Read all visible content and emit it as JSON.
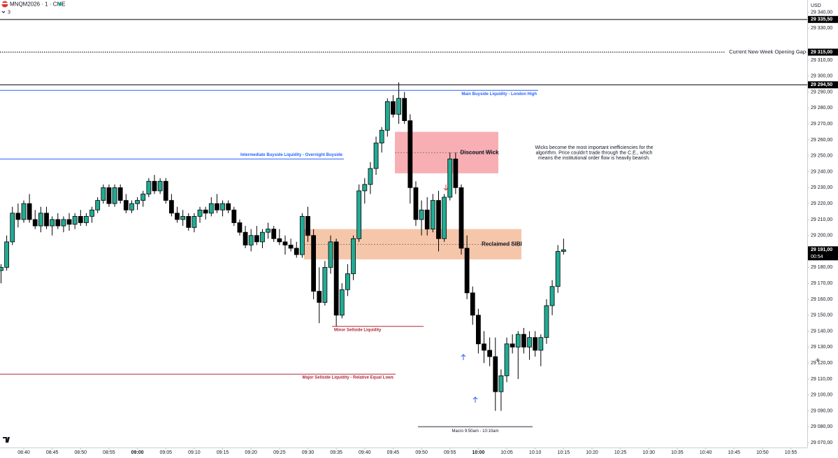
{
  "chart_data": {
    "type": "candlestick",
    "header": {
      "symbol": "MNQM2026 · 1 · CME",
      "count": "3",
      "currency": "USD"
    },
    "x": [
      "08:36",
      "08:37",
      "08:38",
      "08:39",
      "08:40",
      "08:41",
      "08:42",
      "08:43",
      "08:44",
      "08:45",
      "08:46",
      "08:47",
      "08:48",
      "08:49",
      "08:50",
      "08:51",
      "08:52",
      "08:53",
      "08:54",
      "08:55",
      "08:56",
      "08:57",
      "08:58",
      "08:59",
      "09:00",
      "09:01",
      "09:02",
      "09:03",
      "09:04",
      "09:05",
      "09:06",
      "09:07",
      "09:08",
      "09:09",
      "09:10",
      "09:11",
      "09:12",
      "09:13",
      "09:14",
      "09:15",
      "09:16",
      "09:17",
      "09:18",
      "09:19",
      "09:20",
      "09:21",
      "09:22",
      "09:23",
      "09:24",
      "09:25",
      "09:26",
      "09:27",
      "09:28",
      "09:29",
      "09:30",
      "09:31",
      "09:32",
      "09:33",
      "09:34",
      "09:35",
      "09:36",
      "09:37",
      "09:38",
      "09:39",
      "09:40",
      "09:41",
      "09:42",
      "09:43",
      "09:44",
      "09:45",
      "09:46",
      "09:47",
      "09:48",
      "09:49",
      "09:50",
      "09:51",
      "09:52",
      "09:53",
      "09:54",
      "09:55",
      "09:56",
      "09:57",
      "09:58",
      "09:59",
      "10:00",
      "10:01",
      "10:02",
      "10:03",
      "10:04",
      "10:05",
      "10:06",
      "10:07",
      "10:08",
      "10:09",
      "10:10",
      "10:11",
      "10:12",
      "10:13",
      "10:14",
      "10:15"
    ],
    "open": [
      29178,
      29180,
      29196,
      29214,
      29210,
      29220,
      29210,
      29206,
      29214,
      29206,
      29210,
      29206,
      29210,
      29207,
      29212,
      29208,
      29212,
      29216,
      29222,
      29230,
      29220,
      29230,
      29222,
      29216,
      29220,
      29222,
      29226,
      29234,
      29228,
      29234,
      29222,
      29214,
      29210,
      29212,
      29205,
      29212,
      29216,
      29214,
      29220,
      29216,
      29220,
      29216,
      29208,
      29202,
      29194,
      29200,
      29196,
      29202,
      29204,
      29198,
      29196,
      29194,
      29192,
      29188,
      29212,
      29200,
      29165,
      29158,
      29180,
      29196,
      29150,
      29166,
      29176,
      29198,
      29228,
      29232,
      29242,
      29258,
      29266,
      29284,
      29276,
      29286,
      29272,
      29230,
      29210,
      29216,
      29204,
      29222,
      29198,
      29224,
      29248,
      29230,
      29192,
      29164,
      29150,
      29132,
      29128,
      29124,
      29102,
      29112,
      29132,
      29130,
      29138,
      29130,
      29136,
      29128,
      29136,
      29156,
      29168,
      29190
    ],
    "high": [
      29182,
      29200,
      29218,
      29220,
      29222,
      29226,
      29216,
      29218,
      29218,
      29212,
      29214,
      29212,
      29214,
      29214,
      29216,
      29214,
      29218,
      29224,
      29232,
      29232,
      29232,
      29232,
      29226,
      29222,
      29224,
      29228,
      29236,
      29238,
      29236,
      29236,
      29226,
      29218,
      29216,
      29214,
      29214,
      29218,
      29218,
      29224,
      29226,
      29222,
      29222,
      29218,
      29210,
      29206,
      29204,
      29206,
      29204,
      29208,
      29206,
      29204,
      29200,
      29198,
      29196,
      29214,
      29218,
      29204,
      29180,
      29184,
      29200,
      29198,
      29170,
      29182,
      29200,
      29232,
      29236,
      29246,
      29262,
      29268,
      29286,
      29288,
      29296,
      29290,
      29276,
      29234,
      29222,
      29224,
      29226,
      29228,
      29226,
      29252,
      29252,
      29232,
      29200,
      29168,
      29154,
      29140,
      29136,
      29136,
      29116,
      29136,
      29138,
      29140,
      29142,
      29140,
      29140,
      29138,
      29160,
      29172,
      29194,
      29198
    ],
    "low": [
      29170,
      29178,
      29194,
      29205,
      29208,
      29208,
      29204,
      29202,
      29204,
      29200,
      29204,
      29202,
      29203,
      29204,
      29206,
      29206,
      29208,
      29214,
      29220,
      29218,
      29218,
      29220,
      29214,
      29214,
      29216,
      29218,
      29224,
      29226,
      29226,
      29220,
      29212,
      29208,
      29206,
      29203,
      29202,
      29208,
      29210,
      29212,
      29214,
      29212,
      29214,
      29206,
      29200,
      29192,
      29190,
      29194,
      29192,
      29198,
      29196,
      29194,
      29188,
      29190,
      29186,
      29186,
      29196,
      29160,
      29145,
      29156,
      29176,
      29143,
      29148,
      29162,
      29172,
      29196,
      29220,
      29226,
      29238,
      29252,
      29262,
      29274,
      29270,
      29270,
      29220,
      29206,
      29200,
      29200,
      29202,
      29190,
      29196,
      29222,
      29226,
      29188,
      29160,
      29144,
      29126,
      29120,
      29118,
      29090,
      29090,
      29108,
      29126,
      29110,
      29126,
      29122,
      29124,
      29118,
      29132,
      29150,
      29164,
      29188
    ],
    "close": [
      29180,
      29196,
      29214,
      29210,
      29220,
      29210,
      29206,
      29214,
      29206,
      29210,
      29206,
      29210,
      29207,
      29212,
      29208,
      29212,
      29216,
      29222,
      29230,
      29220,
      29230,
      29222,
      29216,
      29220,
      29222,
      29226,
      29234,
      29228,
      29234,
      29222,
      29214,
      29210,
      29212,
      29205,
      29212,
      29216,
      29214,
      29220,
      29216,
      29220,
      29216,
      29208,
      29202,
      29194,
      29200,
      29196,
      29202,
      29204,
      29198,
      29196,
      29194,
      29192,
      29188,
      29212,
      29200,
      29165,
      29158,
      29180,
      29196,
      29150,
      29166,
      29176,
      29198,
      29228,
      29232,
      29242,
      29258,
      29266,
      29284,
      29276,
      29286,
      29272,
      29230,
      29210,
      29216,
      29204,
      29222,
      29198,
      29224,
      29248,
      29230,
      29192,
      29164,
      29150,
      29132,
      29128,
      29124,
      29102,
      29112,
      29132,
      29130,
      29138,
      29130,
      29136,
      29128,
      29136,
      29156,
      29168,
      29190,
      29191
    ],
    "up_color": "#22ab94",
    "down_color": "#000000",
    "ylim": [
      29067,
      29347.7
    ],
    "yticks": [
      {
        "value": 29070,
        "label": "29 070,00"
      },
      {
        "value": 29080,
        "label": "29 080,00"
      },
      {
        "value": 29090,
        "label": "29 090,00"
      },
      {
        "value": 29100,
        "label": "29 100,00"
      },
      {
        "value": 29110,
        "label": "29 110,00"
      },
      {
        "value": 29120,
        "label": "29 120,00"
      },
      {
        "value": 29130,
        "label": "29 130,00"
      },
      {
        "value": 29140,
        "label": "29 140,00"
      },
      {
        "value": 29150,
        "label": "29 150,00"
      },
      {
        "value": 29160,
        "label": "29 160,00"
      },
      {
        "value": 29170,
        "label": "29 170,00"
      },
      {
        "value": 29180,
        "label": "29 180,00"
      },
      {
        "value": 29200,
        "label": "29 200,00"
      },
      {
        "value": 29210,
        "label": "29 210,00"
      },
      {
        "value": 29220,
        "label": "29 220,00"
      },
      {
        "value": 29230,
        "label": "29 230,00"
      },
      {
        "value": 29240,
        "label": "29 240,00"
      },
      {
        "value": 29250,
        "label": "29 250,00"
      },
      {
        "value": 29260,
        "label": "29 260,00"
      },
      {
        "value": 29270,
        "label": "29 270,00"
      },
      {
        "value": 29280,
        "label": "29 280,00"
      },
      {
        "value": 29290,
        "label": "29 290,00"
      },
      {
        "value": 29300,
        "label": "29 300,00"
      },
      {
        "value": 29310,
        "label": "29 310,00"
      },
      {
        "value": 29330,
        "label": "29 330,00"
      },
      {
        "value": 29340,
        "label": "29 340,00"
      }
    ],
    "xticks": [
      "08:40",
      "08:45",
      "08:50",
      "08:55",
      "09:00",
      "09:05",
      "09:10",
      "09:15",
      "09:20",
      "09:25",
      "09:30",
      "09:35",
      "09:40",
      "09:45",
      "09:50",
      "09:55",
      "10:00",
      "10:05",
      "10:10",
      "10:15",
      "10:20",
      "10:25",
      "10:30",
      "10:35",
      "10:40",
      "10:45",
      "10:50",
      "10:55"
    ],
    "price_labels": [
      {
        "value": 29335.5,
        "label": "29 335,50"
      },
      {
        "value": 29315,
        "label": "29 315,00"
      },
      {
        "value": 29294.5,
        "label": "29 294,50"
      },
      {
        "value": 29191,
        "label": "29 191,00",
        "countdown": "00:54"
      }
    ],
    "levels": [
      {
        "value": 29335.5,
        "color": "#000000"
      },
      {
        "value": 29315,
        "color": "#000000",
        "text": "Current New Week Opening Gap"
      },
      {
        "value": 29294.5,
        "color": "#000000"
      },
      {
        "value": 29291,
        "color": "#2962ff",
        "text": "Main Buyside Liquidity - London High"
      },
      {
        "value": 29248,
        "color": "#2962ff",
        "text": "Intermediate Buyside Liquidity - Overnight Buyside"
      },
      {
        "value": 29143,
        "color": "#b22833",
        "text": "Minor Sellside Liquidity"
      },
      {
        "value": 29113,
        "color": "#b22833",
        "text": "Major Sellside Liquidity - Relative Equal Lows"
      },
      {
        "value": 29080,
        "color": "#787b86",
        "text": "Macro 9:50am - 10:10am"
      }
    ],
    "zones": [
      {
        "low": 29239,
        "high": 29265,
        "mid": 29252,
        "color": "#f7a1a6",
        "text": "Discount Wick"
      },
      {
        "low": 29185,
        "high": 29204,
        "mid": 29194.5,
        "color": "#f5bc9b",
        "text": "Reclaimed SIBI"
      }
    ],
    "note": [
      "Wicks become the most important inefficiencies for the",
      "algorithm. Price couldn't trade through the C.E., which",
      "means the institutional order flow is heavily bearish."
    ]
  }
}
